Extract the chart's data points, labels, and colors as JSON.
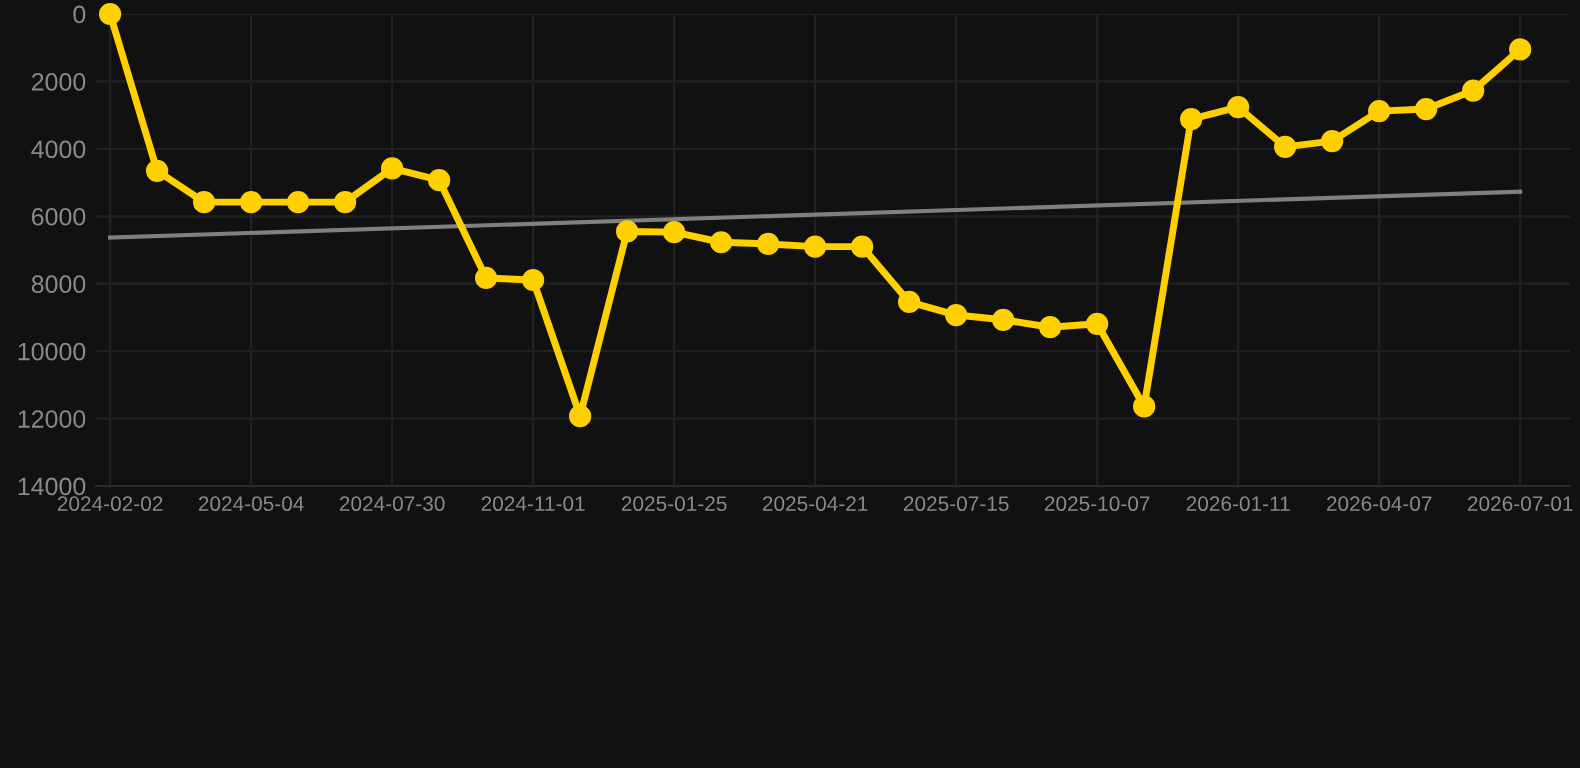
{
  "chart_data": {
    "type": "line",
    "categories": [
      "2024-02-02",
      null,
      null,
      "2024-05-04",
      null,
      null,
      "2024-07-30",
      null,
      null,
      "2024-11-01",
      null,
      null,
      "2025-01-25",
      null,
      null,
      "2025-04-21",
      null,
      null,
      "2025-07-15",
      null,
      null,
      "2025-10-07",
      null,
      null,
      "2026-01-11",
      null,
      null,
      "2026-04-07",
      null,
      null,
      "2026-07-01"
    ],
    "series": [
      {
        "color": "#ffd000",
        "marker": "circle",
        "values": [
          0,
          4650,
          5580,
          5580,
          5580,
          5580,
          4580,
          4930,
          7830,
          7890,
          11930,
          6450,
          6470,
          6770,
          6820,
          6900,
          6900,
          8540,
          8930,
          9070,
          9290,
          9190,
          11640,
          3120,
          2760,
          3940,
          3770,
          2880,
          2820,
          2270,
          1050
        ]
      },
      {
        "type": "line",
        "color": "#808080",
        "marker": "none",
        "values": [
          6630,
          null,
          null,
          null,
          null,
          null,
          null,
          null,
          null,
          null,
          null,
          null,
          null,
          null,
          null,
          null,
          null,
          null,
          null,
          null,
          null,
          null,
          null,
          null,
          null,
          null,
          null,
          null,
          null,
          null,
          5270
        ]
      }
    ],
    "ylim": [
      14000,
      0
    ],
    "yticks": [
      0,
      2000,
      4000,
      6000,
      8000,
      10000,
      12000,
      14000
    ],
    "grid": true,
    "legend": false
  }
}
